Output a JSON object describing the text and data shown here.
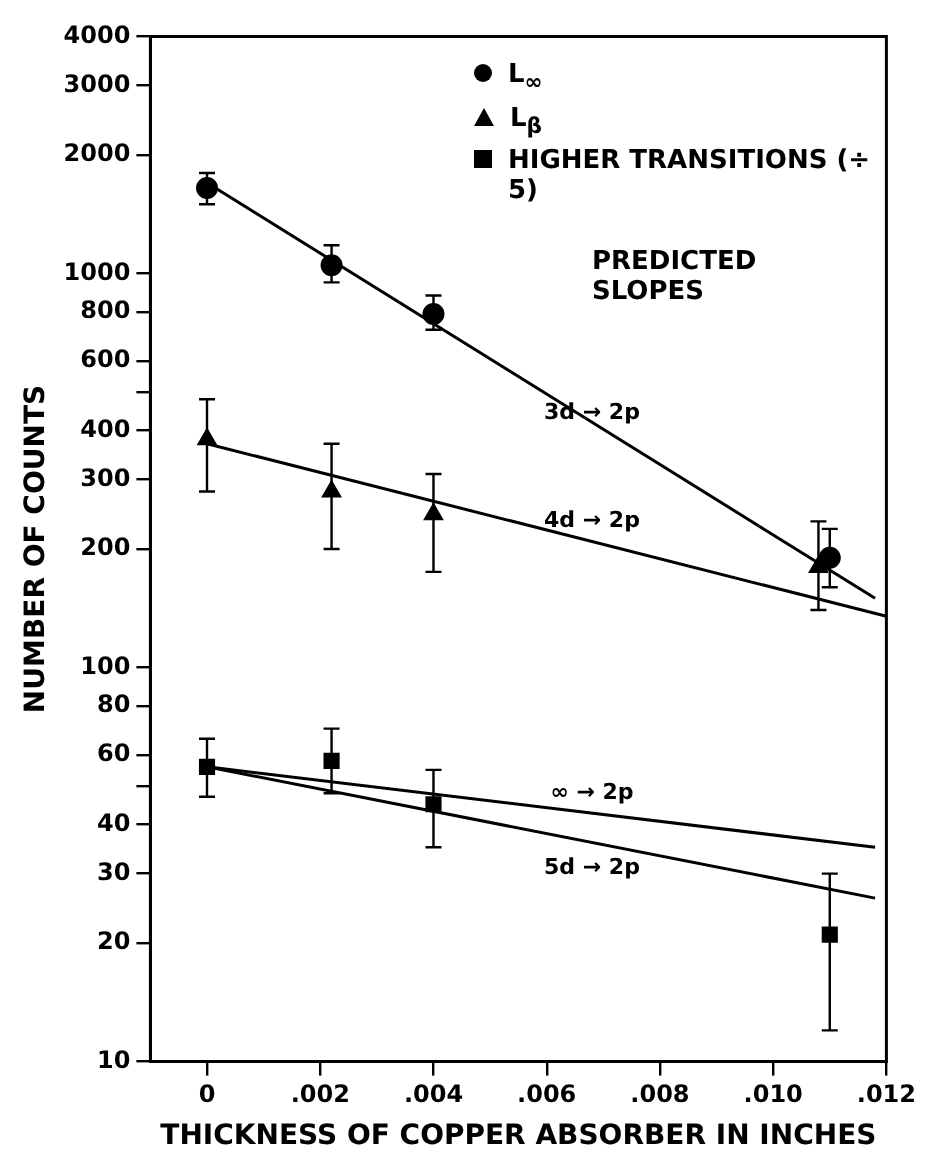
{
  "chart_data": {
    "type": "scatter",
    "xlabel": "THICKNESS OF COPPER ABSORBER IN INCHES",
    "ylabel": "NUMBER OF COUNTS",
    "log": "y",
    "legend": "top right",
    "grid": false,
    "xlim": [
      -0.001,
      0.012
    ],
    "xticks": [
      0,
      {
        "value": 0.002,
        "label": ".002"
      },
      {
        "value": 0.004,
        "label": ".004"
      },
      {
        "value": 0.006,
        "label": ".006"
      },
      {
        "value": 0.008,
        "label": ".008"
      },
      {
        "value": 0.01,
        "label": ".010"
      },
      {
        "value": 0.012,
        "label": ".012"
      }
    ],
    "ylim": [
      10,
      4000
    ],
    "yticks": [
      10,
      20,
      30,
      40,
      {
        "value": 50,
        "label": null
      },
      60,
      80,
      100,
      200,
      300,
      400,
      {
        "value": 500,
        "label": null
      },
      600,
      800,
      1000,
      2000,
      3000,
      4000
    ],
    "series": [
      {
        "name": "L$_{∞}$",
        "type": "scatter",
        "marker": "circle",
        "color": "#000000",
        "x": [
          0,
          0.0022,
          0.004,
          0.011
        ],
        "values": [
          1650,
          1050,
          790,
          190
        ],
        "errors": [
          [
            1500,
            1800
          ],
          [
            950,
            1180
          ],
          [
            720,
            880
          ],
          [
            160,
            225
          ]
        ]
      },
      {
        "name": "L$_{β}$",
        "type": "scatter",
        "marker": "triangle",
        "color": "#000000",
        "x": [
          0,
          0.0022,
          0.004,
          0.0108
        ],
        "values": [
          380,
          280,
          245,
          180
        ],
        "errors": [
          [
            280,
            480
          ],
          [
            200,
            370
          ],
          [
            175,
            310
          ],
          [
            140,
            235
          ]
        ]
      },
      {
        "name": "HIGHER TRANSITIONS (÷ 5)",
        "type": "scatter",
        "marker": "square",
        "color": "#000000",
        "x": [
          0,
          0.0022,
          0.004,
          0.011
        ],
        "values": [
          56,
          58,
          45,
          21
        ],
        "errors": [
          [
            47,
            66
          ],
          [
            48,
            70
          ],
          [
            35,
            55
          ],
          [
            12,
            30
          ]
        ]
      },
      {
        "type": "line",
        "marker": "none",
        "color": "#000000",
        "x": [
          0,
          0.0118
        ],
        "values": [
          1700,
          150
        ]
      },
      {
        "type": "line",
        "marker": "none",
        "color": "#000000",
        "x": [
          0,
          0.012
        ],
        "values": [
          370,
          135
        ]
      },
      {
        "type": "line",
        "marker": "none",
        "color": "#000000",
        "x": [
          0,
          0.0118
        ],
        "values": [
          56,
          35
        ]
      },
      {
        "type": "line",
        "marker": "none",
        "color": "#000000",
        "x": [
          0,
          0.0118
        ],
        "values": [
          56,
          26
        ]
      }
    ],
    "annotations": [
      "PREDICTED SLOPES",
      "3d → 2p",
      "4d → 2p",
      "∞ → 2p",
      "5d → 2p"
    ]
  }
}
